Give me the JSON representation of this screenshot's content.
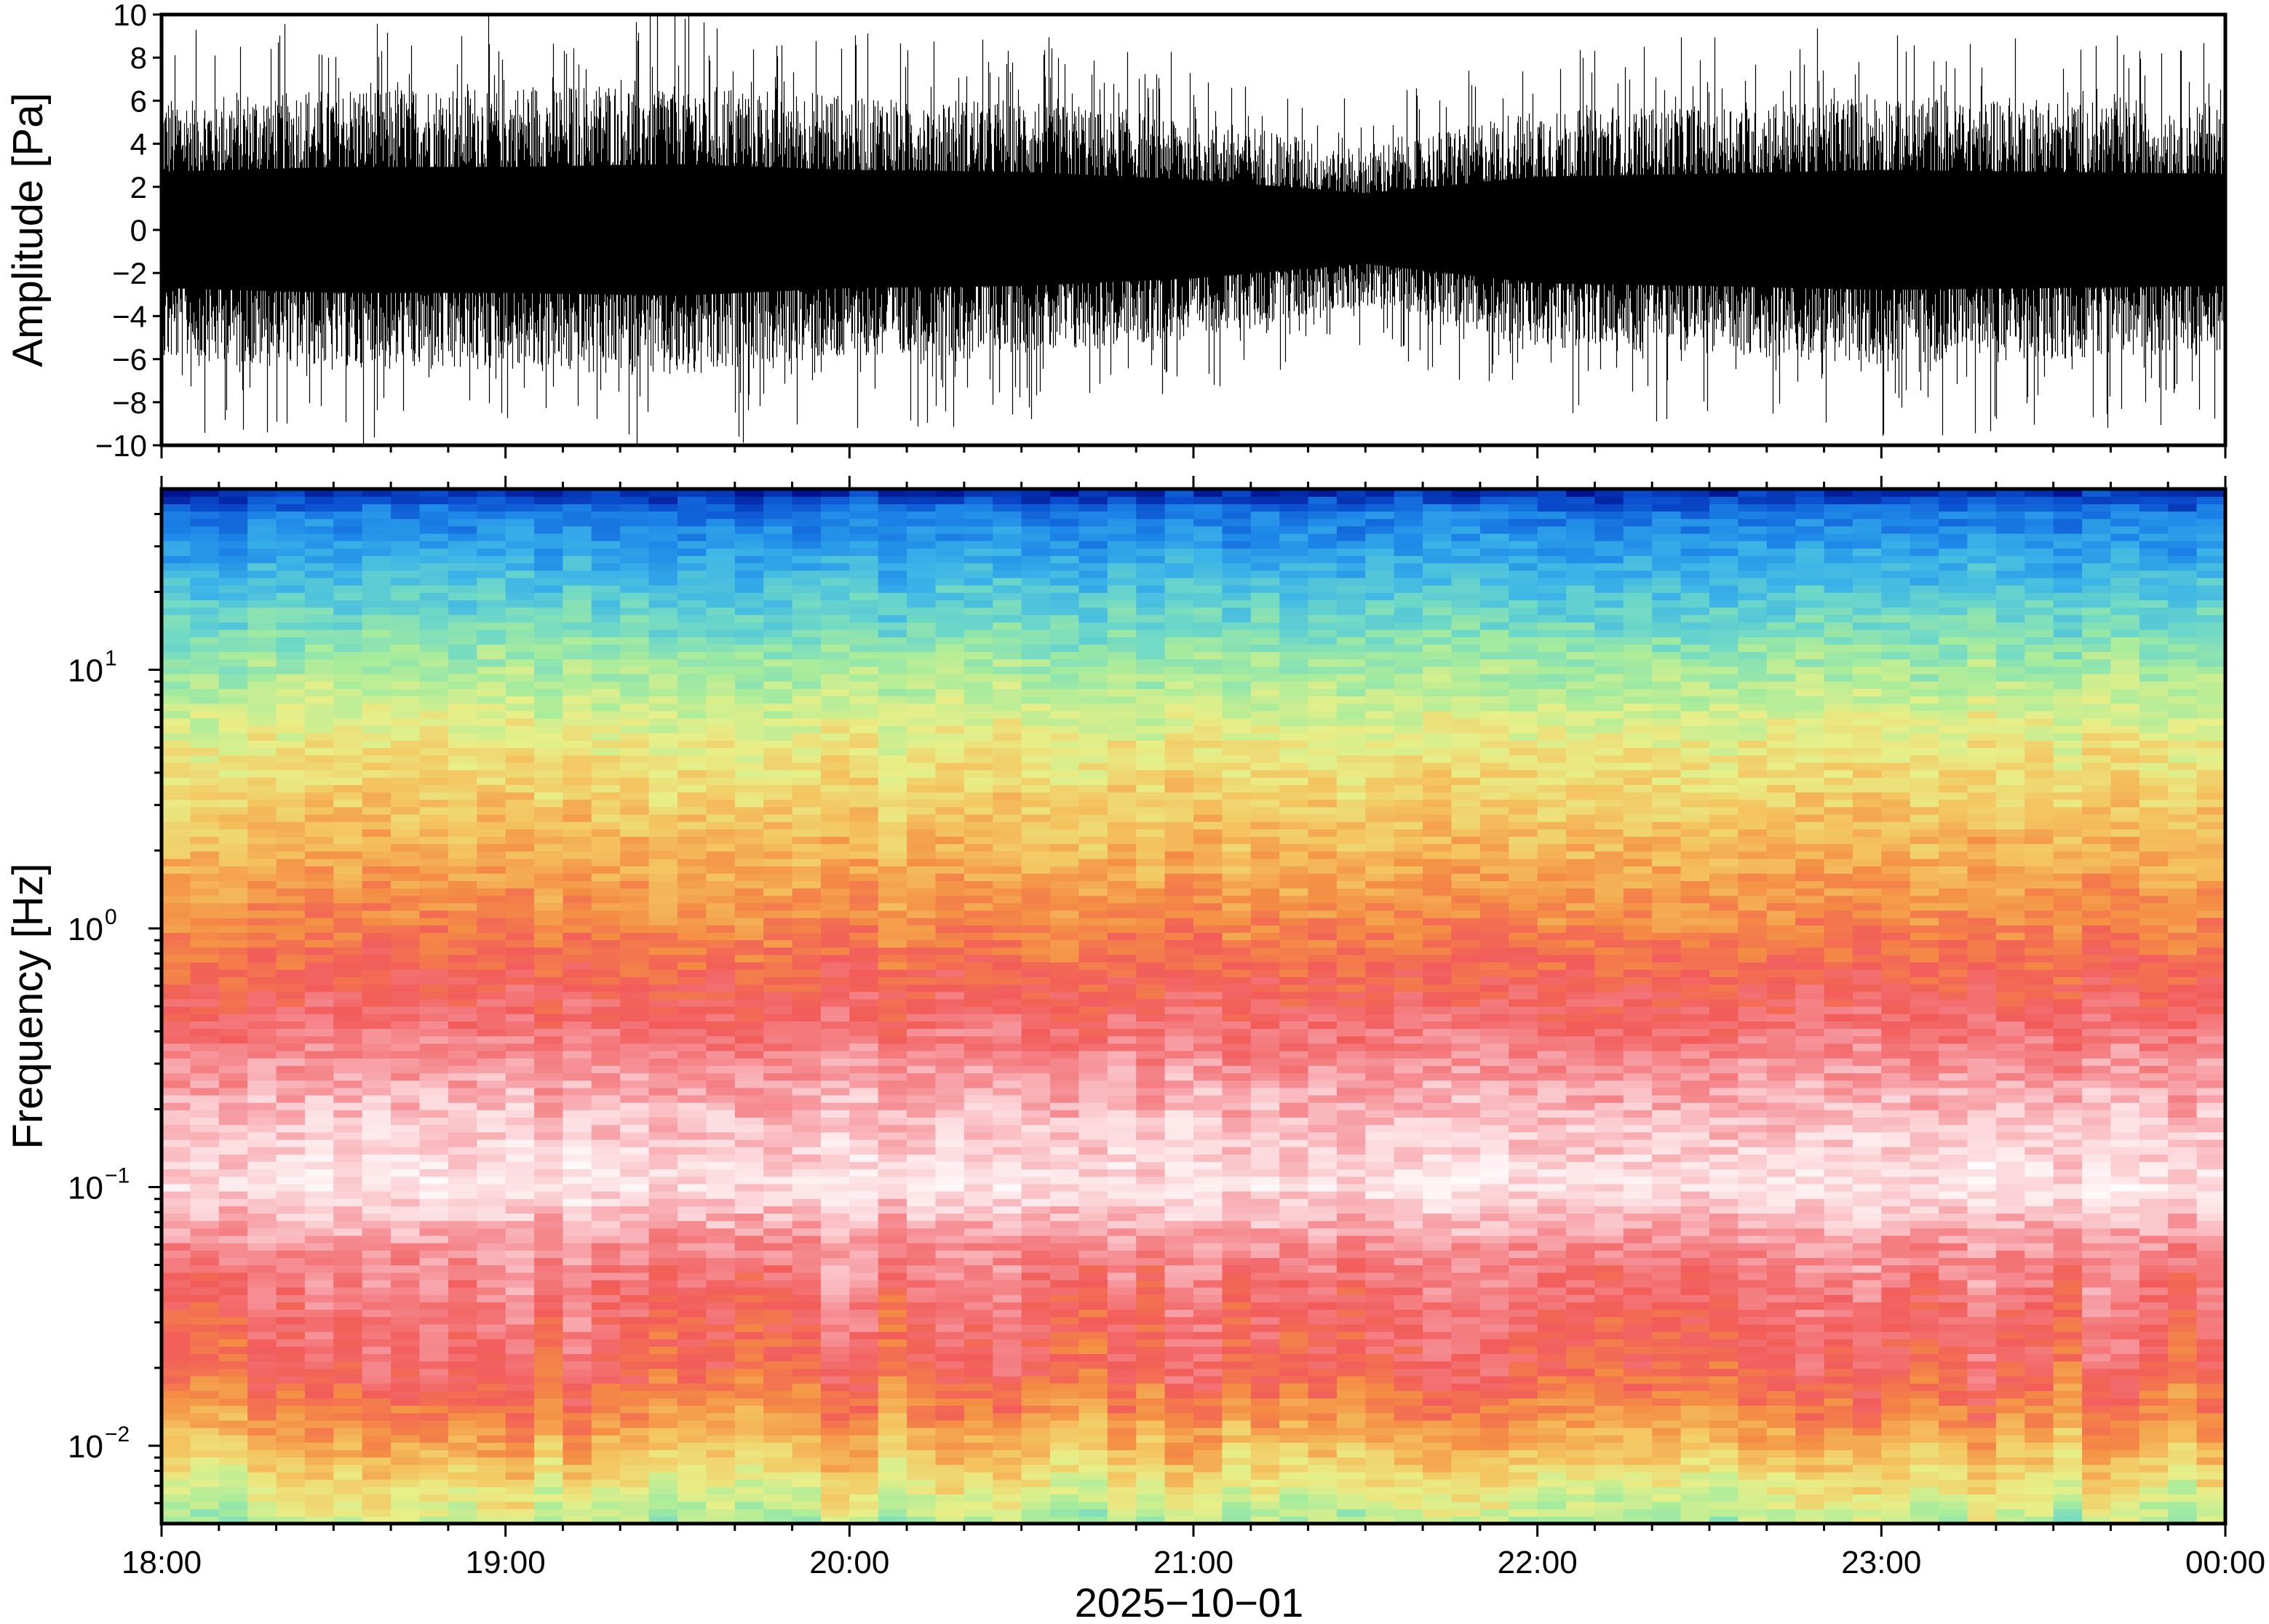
{
  "chart_data": [
    {
      "type": "line",
      "panel": "waveform",
      "ylabel": "Amplitude [Pa]",
      "ylim": [
        -10,
        10
      ],
      "yticks": [
        10,
        8,
        6,
        4,
        2,
        0,
        -2,
        -4,
        -6,
        -8,
        -10
      ],
      "ytick_labels": [
        "10",
        "8",
        "6",
        "4",
        "2",
        "0",
        "−2",
        "−4",
        "−6",
        "−8",
        "−10"
      ],
      "x": [
        "18:00",
        "18:30",
        "19:00",
        "19:30",
        "20:00",
        "20:30",
        "21:00",
        "21:30",
        "22:00",
        "22:30",
        "23:00",
        "23:30",
        "00:00"
      ],
      "series": [
        {
          "envelope_max": [
            6.0,
            6.5,
            6.5,
            6.8,
            6.2,
            6.0,
            5.2,
            3.8,
            5.5,
            5.8,
            6.2,
            6.0,
            5.8
          ],
          "envelope_min": [
            -6.0,
            -6.5,
            -6.5,
            -6.8,
            -6.0,
            -5.8,
            -5.0,
            -3.5,
            -5.5,
            -5.8,
            -6.2,
            -6.0,
            -5.8
          ]
        }
      ],
      "line_color": "#000000",
      "grid": false
    },
    {
      "type": "heatmap",
      "panel": "spectrogram",
      "ylabel": "Frequency [Hz]",
      "yscale": "log",
      "ylim": [
        0.005,
        50
      ],
      "yticks": [
        0.01,
        0.1,
        1,
        10
      ],
      "ytick_mantissa": [
        "10",
        "10",
        "10",
        "10"
      ],
      "ytick_exponent": [
        "−2",
        "−1",
        "0",
        "1"
      ],
      "xlabel": "2025−10−01",
      "xticks": [
        "18:00",
        "19:00",
        "20:00",
        "21:00",
        "22:00",
        "23:00",
        "00:00"
      ],
      "xlim": [
        "18:00",
        "00:00"
      ],
      "frequency_profile_hz": [
        0.006,
        0.009,
        0.013,
        0.02,
        0.035,
        0.06,
        0.1,
        0.2,
        0.5,
        1.0,
        2.0,
        5.0,
        10,
        20,
        45
      ],
      "colormap": [
        "#00128f",
        "#0a4fd0",
        "#1e88e8",
        "#3cb4e8",
        "#6dd8c8",
        "#a8ec9c",
        "#e8ef88",
        "#f4c460",
        "#f48e44",
        "#f25c5a",
        "#f58e94",
        "#fcd8dc",
        "#ffffff"
      ],
      "grid": false
    }
  ]
}
